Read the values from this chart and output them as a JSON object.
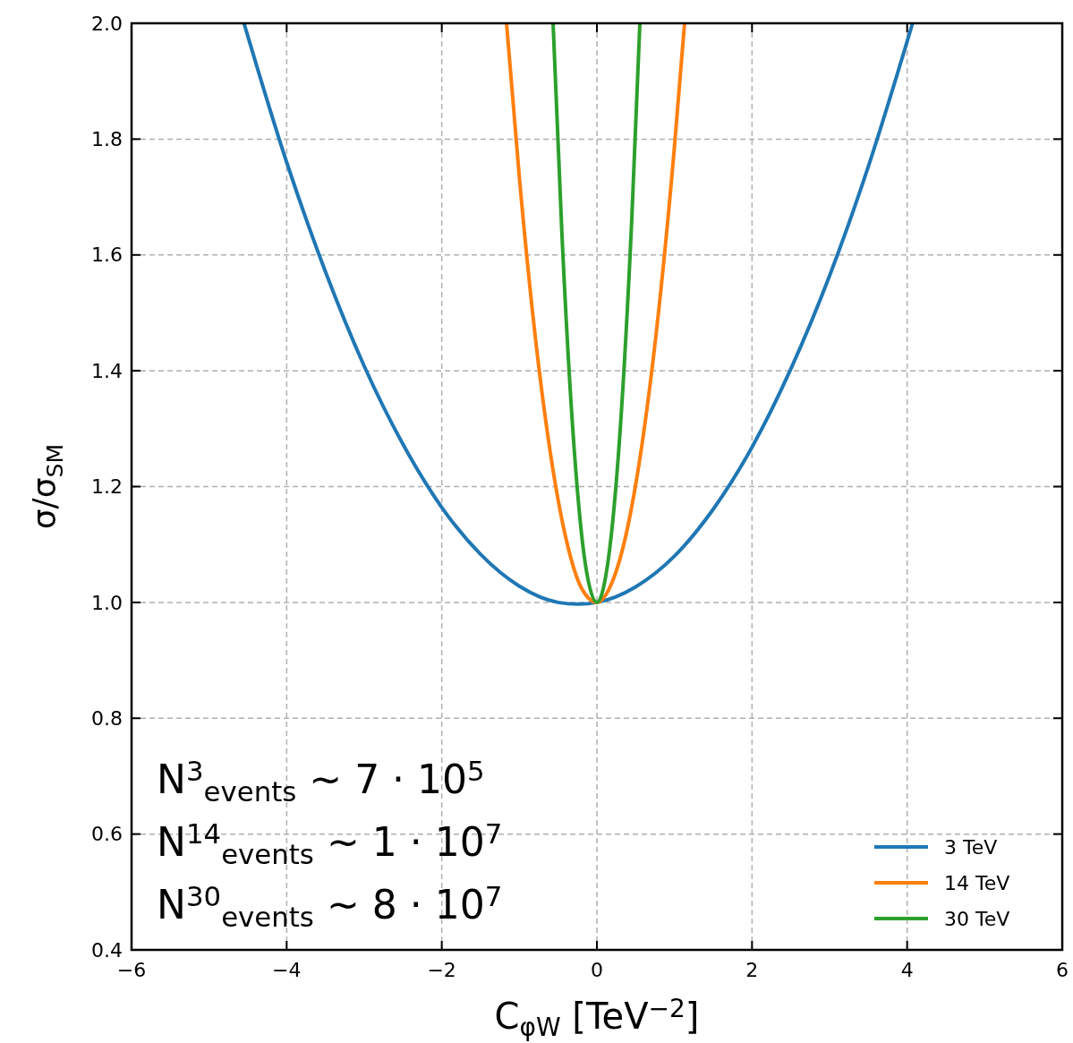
{
  "chart_data": {
    "type": "line",
    "xlabel": "C$_{φW}$ [TeV$^{−2}$]",
    "ylabel": "σ/σ$_{SM}$",
    "xlim": [
      -6,
      6
    ],
    "ylim": [
      0.4,
      2.0
    ],
    "xticks": [
      {
        "value": -6,
        "label": "−6"
      },
      {
        "value": -4,
        "label": "−4"
      },
      {
        "value": -2,
        "label": "−2"
      },
      0,
      2,
      4,
      6
    ],
    "yticks": [
      0.4,
      0.6,
      0.8,
      {
        "value": 1,
        "label": "1.0"
      },
      1.2,
      1.4,
      1.6,
      1.8,
      {
        "value": 2,
        "label": "2.0"
      }
    ],
    "grid": true,
    "legend": "bottom right",
    "line_style": "solid",
    "marker": "none",
    "annotations": [
      "N$^{3}$$_{events}$ ~ 7 · 10$^{5}$",
      "N$^{14}$$_{events}$ ~ 1 · 10$^{7}$",
      "N$^{30}$$_{events}$ ~ 8 · 10$^{7}$"
    ],
    "series": [
      {
        "name": "3 TeV",
        "color": "#1f77b4",
        "x": [
          -4.55,
          -4,
          -3.5,
          -3,
          -2.5,
          -2,
          -1.5,
          -1,
          -0.5,
          -0.24,
          0,
          0.5,
          1,
          1.5,
          2,
          2.5,
          3,
          3.5,
          4.07
        ],
        "values": [
          2.0,
          1.76,
          1.571,
          1.408,
          1.273,
          1.164,
          1.083,
          1.028,
          1.0,
          0.997,
          1.0,
          1.027,
          1.08,
          1.161,
          1.268,
          1.403,
          1.564,
          1.753,
          2.0
        ]
      },
      {
        "name": "14 TeV",
        "color": "#ff7f0e",
        "x": [
          -1.165,
          -1,
          -0.8,
          -0.6,
          -0.4,
          -0.2,
          0,
          0.2,
          0.4,
          0.6,
          0.8,
          1,
          1.13
        ],
        "values": [
          2.0,
          1.734,
          1.465,
          1.258,
          1.111,
          1.025,
          1.0,
          1.036,
          1.132,
          1.29,
          1.508,
          1.787,
          2.0
        ]
      },
      {
        "name": "30 TeV",
        "color": "#2ca02c",
        "x": [
          -0.565,
          -0.45,
          -0.3,
          -0.15,
          0,
          0.15,
          0.3,
          0.45,
          0.554
        ],
        "values": [
          2.0,
          1.633,
          1.278,
          1.067,
          1.0,
          1.077,
          1.298,
          1.663,
          2.0
        ]
      }
    ]
  }
}
